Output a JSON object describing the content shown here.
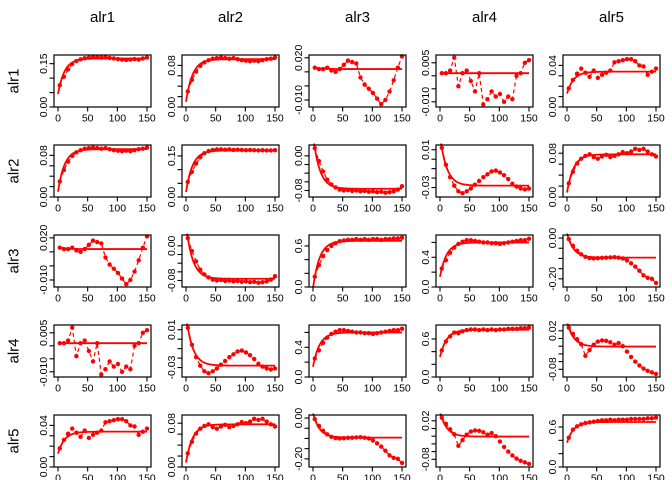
{
  "chart_data": {
    "type": "scatter",
    "subtype": "5x5 panel matrix of running-estimate traces (points + dashed connector + solid asymptote curve)",
    "title": "",
    "col_titles": [
      "alr1",
      "alr2",
      "alr3",
      "alr4",
      "alr5"
    ],
    "row_labels": [
      "alr1",
      "alr2",
      "alr3",
      "alr4",
      "alr5"
    ],
    "xlim": [
      0,
      150
    ],
    "x_ticks": [
      0,
      50,
      100,
      150
    ],
    "x_tick_labels": [
      "0",
      "50",
      "100",
      "150"
    ],
    "grid_on": false,
    "point_color": "#ff0000",
    "line_color": "#ff0000",
    "axis_color": "#000000",
    "x": [
      3,
      10,
      17,
      24,
      31,
      38,
      45,
      52,
      59,
      66,
      73,
      80,
      87,
      94,
      101,
      108,
      115,
      122,
      129,
      136,
      143,
      150
    ],
    "grid": [
      [
        "S11",
        "S12",
        "S13",
        "S14",
        "S15"
      ],
      [
        "S12",
        "S22",
        "S23",
        "S24",
        "S25"
      ],
      [
        "S13",
        "S23",
        "S33",
        "S34",
        "S35"
      ],
      [
        "S14",
        "S24",
        "S34",
        "S44",
        "S45"
      ],
      [
        "S15",
        "S25",
        "S35",
        "S45",
        "S55"
      ]
    ],
    "series": {
      "S11": {
        "ylim": [
          0,
          0.18
        ],
        "ref": 0.168,
        "yticks": [
          0,
          0.05,
          0.1,
          0.15
        ],
        "ylabels": [
          {
            "t": "0.00",
            "v": 0
          },
          {
            "t": "0.15",
            "v": 0.15
          }
        ],
        "y": [
          0.075,
          0.105,
          0.13,
          0.149,
          0.159,
          0.165,
          0.169,
          0.171,
          0.172,
          0.172,
          0.171,
          0.172,
          0.17,
          0.168,
          0.166,
          0.164,
          0.163,
          0.164,
          0.166,
          0.164,
          0.168,
          0.171
        ]
      },
      "S12": {
        "ylim": [
          0,
          0.1
        ],
        "ref": 0.092,
        "yticks": [
          0,
          0.02,
          0.04,
          0.06,
          0.08
        ],
        "ylabels": [
          {
            "t": "0.00",
            "v": 0
          },
          {
            "t": "0.08",
            "v": 0.08
          }
        ],
        "y": [
          0.03,
          0.052,
          0.068,
          0.079,
          0.086,
          0.09,
          0.093,
          0.094,
          0.095,
          0.094,
          0.093,
          0.094,
          0.092,
          0.09,
          0.089,
          0.088,
          0.089,
          0.088,
          0.09,
          0.092,
          0.093,
          0.095
        ]
      },
      "S13": {
        "ylim": [
          -0.015,
          0.022
        ],
        "ref": 0.012,
        "yticks": [
          -0.01,
          0,
          0.01,
          0.02
        ],
        "ylabels": [
          {
            "t": "-0.010",
            "v": -0.01
          },
          {
            "t": "0.020",
            "v": 0.02
          }
        ],
        "y": [
          0.013,
          0.012,
          0.012,
          0.013,
          0.011,
          0.01,
          0.012,
          0.015,
          0.018,
          0.017,
          0.016,
          0.006,
          0.001,
          -0.002,
          -0.005,
          -0.009,
          -0.013,
          -0.01,
          -0.004,
          0.004,
          0.013,
          0.021
        ]
      },
      "S14": {
        "ylim": [
          -0.012,
          0.008
        ],
        "ref": 0.001,
        "yticks": [
          -0.01,
          -0.005,
          0,
          0.005
        ],
        "ylabels": [
          {
            "t": "-0.010",
            "v": -0.01
          },
          {
            "t": "0.005",
            "v": 0.005
          }
        ],
        "y": [
          0.001,
          0.001,
          0.002,
          0.007,
          -0.004,
          0.001,
          0.002,
          -0.002,
          -0.006,
          0.001,
          -0.011,
          -0.009,
          -0.006,
          -0.008,
          -0.007,
          -0.01,
          -0.008,
          -0.009,
          0.0,
          0.001,
          0.005,
          0.006
        ]
      },
      "S15": {
        "ylim": [
          0,
          0.05
        ],
        "ref": 0.034,
        "yticks": [
          0,
          0.01,
          0.02,
          0.03,
          0.04
        ],
        "ylabels": [
          {
            "t": "0.00",
            "v": 0
          },
          {
            "t": "0.04",
            "v": 0.04
          }
        ],
        "y": [
          0.018,
          0.026,
          0.032,
          0.037,
          0.033,
          0.029,
          0.035,
          0.028,
          0.031,
          0.033,
          0.035,
          0.043,
          0.044,
          0.045,
          0.046,
          0.046,
          0.044,
          0.04,
          0.039,
          0.031,
          0.034,
          0.037
        ]
      },
      "S22": {
        "ylim": [
          0,
          0.19
        ],
        "ref": 0.17,
        "yticks": [
          0,
          0.05,
          0.1,
          0.15
        ],
        "ylabels": [
          {
            "t": "0.00",
            "v": 0
          },
          {
            "t": "0.15",
            "v": 0.15
          }
        ],
        "y": [
          0.055,
          0.092,
          0.122,
          0.145,
          0.16,
          0.168,
          0.172,
          0.174,
          0.174,
          0.173,
          0.174,
          0.172,
          0.173,
          0.172,
          0.171,
          0.172,
          0.171,
          0.17,
          0.171,
          0.17,
          0.17,
          0.171
        ]
      },
      "S23": {
        "ylim": [
          -0.095,
          0.025
        ],
        "ref": -0.076,
        "yticks": [
          -0.08,
          -0.06,
          -0.04,
          -0.02,
          0
        ],
        "ylabels": [
          {
            "t": "-0.08",
            "v": -0.08
          },
          {
            "t": "0.00",
            "v": 0
          }
        ],
        "y": [
          0.018,
          -0.012,
          -0.036,
          -0.055,
          -0.066,
          -0.073,
          -0.078,
          -0.08,
          -0.079,
          -0.081,
          -0.08,
          -0.082,
          -0.081,
          -0.083,
          -0.082,
          -0.084,
          -0.083,
          -0.085,
          -0.084,
          -0.082,
          -0.078,
          -0.07
        ]
      },
      "S24": {
        "ylim": [
          -0.04,
          0.015
        ],
        "ref": -0.028,
        "yticks": [
          -0.03,
          -0.02,
          -0.01,
          0,
          0.01
        ],
        "ylabels": [
          {
            "t": "-0.03",
            "v": -0.03
          },
          {
            "t": "0.01",
            "v": 0.01
          }
        ],
        "y": [
          0.012,
          -0.006,
          -0.019,
          -0.028,
          -0.034,
          -0.036,
          -0.034,
          -0.031,
          -0.027,
          -0.023,
          -0.019,
          -0.016,
          -0.013,
          -0.012,
          -0.014,
          -0.017,
          -0.021,
          -0.026,
          -0.029,
          -0.031,
          -0.032,
          -0.031
        ]
      },
      "S25": {
        "ylim": [
          0,
          0.095
        ],
        "ref": 0.078,
        "yticks": [
          0,
          0.02,
          0.04,
          0.06,
          0.08
        ],
        "ylabels": [
          {
            "t": "0.00",
            "v": 0
          },
          {
            "t": "0.08",
            "v": 0.08
          }
        ],
        "y": [
          0.025,
          0.046,
          0.061,
          0.07,
          0.075,
          0.078,
          0.073,
          0.07,
          0.074,
          0.077,
          0.073,
          0.075,
          0.078,
          0.082,
          0.08,
          0.083,
          0.088,
          0.086,
          0.088,
          0.083,
          0.078,
          0.074
        ]
      },
      "S33": {
        "ylim": [
          0,
          0.76
        ],
        "ref": 0.675,
        "yticks": [
          0,
          0.2,
          0.4,
          0.6
        ],
        "ylabels": [
          {
            "t": "0.0",
            "v": 0
          },
          {
            "t": "0.6",
            "v": 0.6
          }
        ],
        "y": [
          0.15,
          0.32,
          0.45,
          0.54,
          0.6,
          0.64,
          0.67,
          0.68,
          0.69,
          0.69,
          0.7,
          0.69,
          0.7,
          0.69,
          0.7,
          0.7,
          0.69,
          0.7,
          0.7,
          0.71,
          0.71,
          0.72
        ]
      },
      "S34": {
        "ylim": [
          0,
          0.7
        ],
        "ref": 0.6,
        "yticks": [
          0,
          0.2,
          0.4,
          0.6
        ],
        "ylabels": [
          {
            "t": "0.0",
            "v": 0
          },
          {
            "t": "0.4",
            "v": 0.4
          }
        ],
        "y": [
          0.25,
          0.36,
          0.46,
          0.53,
          0.58,
          0.61,
          0.63,
          0.63,
          0.62,
          0.61,
          0.6,
          0.6,
          0.59,
          0.59,
          0.58,
          0.59,
          0.6,
          0.61,
          0.62,
          0.63,
          0.63,
          0.65
        ]
      },
      "S35": {
        "ylim": [
          -0.24,
          0.015
        ],
        "ref": -0.096,
        "yticks": [
          -0.2,
          -0.15,
          -0.1,
          -0.05,
          0
        ],
        "ylabels": [
          {
            "t": "-0.20",
            "v": -0.2
          },
          {
            "t": "0.00",
            "v": 0
          }
        ],
        "y": [
          -0.005,
          -0.038,
          -0.062,
          -0.08,
          -0.092,
          -0.098,
          -0.1,
          -0.099,
          -0.097,
          -0.096,
          -0.095,
          -0.094,
          -0.096,
          -0.1,
          -0.11,
          -0.124,
          -0.14,
          -0.16,
          -0.183,
          -0.195,
          -0.2,
          -0.22
        ]
      },
      "S44": {
        "ylim": [
          0,
          0.82
        ],
        "ref": 0.745,
        "yticks": [
          0,
          0.2,
          0.4,
          0.6
        ],
        "ylabels": [
          {
            "t": "0.0",
            "v": 0
          },
          {
            "t": "0.6",
            "v": 0.6
          }
        ],
        "y": [
          0.42,
          0.56,
          0.64,
          0.7,
          0.69,
          0.72,
          0.74,
          0.75,
          0.75,
          0.74,
          0.75,
          0.74,
          0.75,
          0.74,
          0.75,
          0.75,
          0.76,
          0.76,
          0.76,
          0.77,
          0.77,
          0.78
        ]
      },
      "S45": {
        "ylim": [
          -0.1,
          0.035
        ],
        "ref": -0.021,
        "yticks": [
          -0.08,
          -0.06,
          -0.04,
          -0.02,
          0,
          0.02
        ],
        "ylabels": [
          {
            "t": "-0.08",
            "v": -0.08
          },
          {
            "t": "0.02",
            "v": 0.02
          }
        ],
        "y": [
          0.028,
          0.012,
          -0.002,
          -0.015,
          -0.045,
          -0.03,
          -0.016,
          -0.008,
          -0.005,
          -0.006,
          -0.01,
          -0.016,
          -0.012,
          -0.02,
          -0.034,
          -0.048,
          -0.06,
          -0.07,
          -0.078,
          -0.084,
          -0.088,
          -0.092
        ]
      },
      "S55": {
        "ylim": [
          0,
          0.78
        ],
        "ref": 0.675,
        "yticks": [
          0,
          0.2,
          0.4,
          0.6
        ],
        "ylabels": [
          {
            "t": "0.0",
            "v": 0
          },
          {
            "t": "0.6",
            "v": 0.6
          }
        ],
        "y": [
          0.44,
          0.56,
          0.61,
          0.64,
          0.66,
          0.67,
          0.68,
          0.69,
          0.7,
          0.7,
          0.71,
          0.7,
          0.71,
          0.71,
          0.71,
          0.72,
          0.72,
          0.72,
          0.72,
          0.73,
          0.73,
          0.74
        ]
      }
    }
  }
}
